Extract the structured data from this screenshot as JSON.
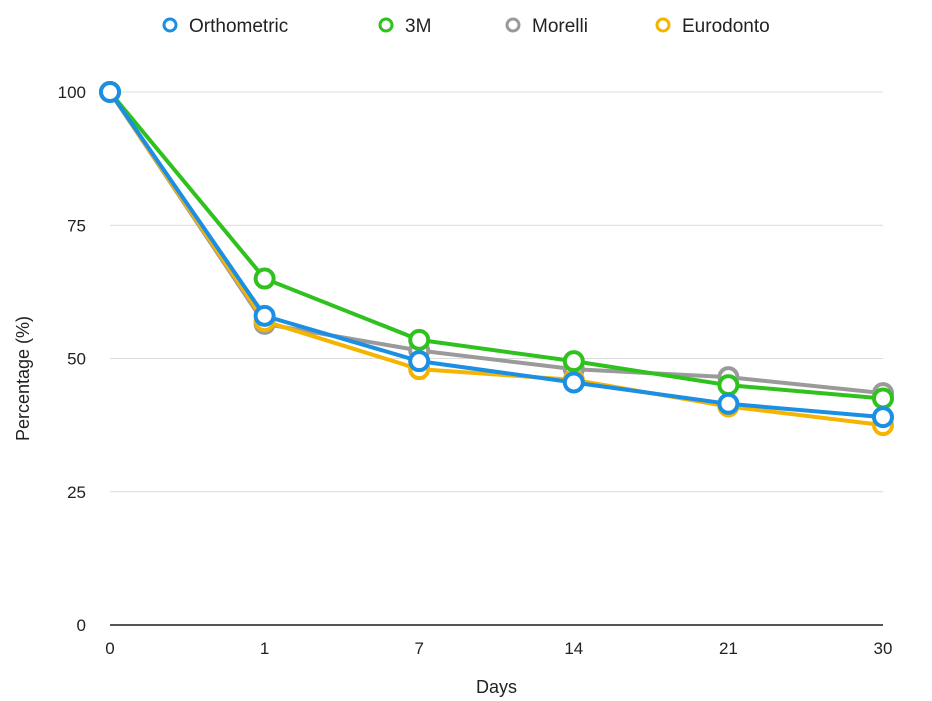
{
  "chart_data": {
    "type": "line",
    "title": "",
    "xlabel": "Days",
    "ylabel": "Percentage (%)",
    "categories": [
      "0",
      "1",
      "7",
      "14",
      "21",
      "30"
    ],
    "ylim": [
      0,
      100
    ],
    "yticks": [
      0,
      25,
      50,
      75,
      100
    ],
    "grid": true,
    "legend_position": "top",
    "series": [
      {
        "name": "Orthometric",
        "color": "#1a8fe3",
        "values": [
          100,
          58,
          49.5,
          45.5,
          41.5,
          39
        ]
      },
      {
        "name": "3M",
        "color": "#2fc21f",
        "values": [
          100,
          65,
          53.5,
          49.5,
          45,
          42.5
        ]
      },
      {
        "name": "Morelli",
        "color": "#9a9a9a",
        "values": [
          100,
          56.5,
          51.5,
          48,
          46.5,
          43.5
        ]
      },
      {
        "name": "Eurodonto",
        "color": "#f4b400",
        "values": [
          100,
          57,
          48,
          46,
          41,
          37.5
        ]
      }
    ]
  }
}
